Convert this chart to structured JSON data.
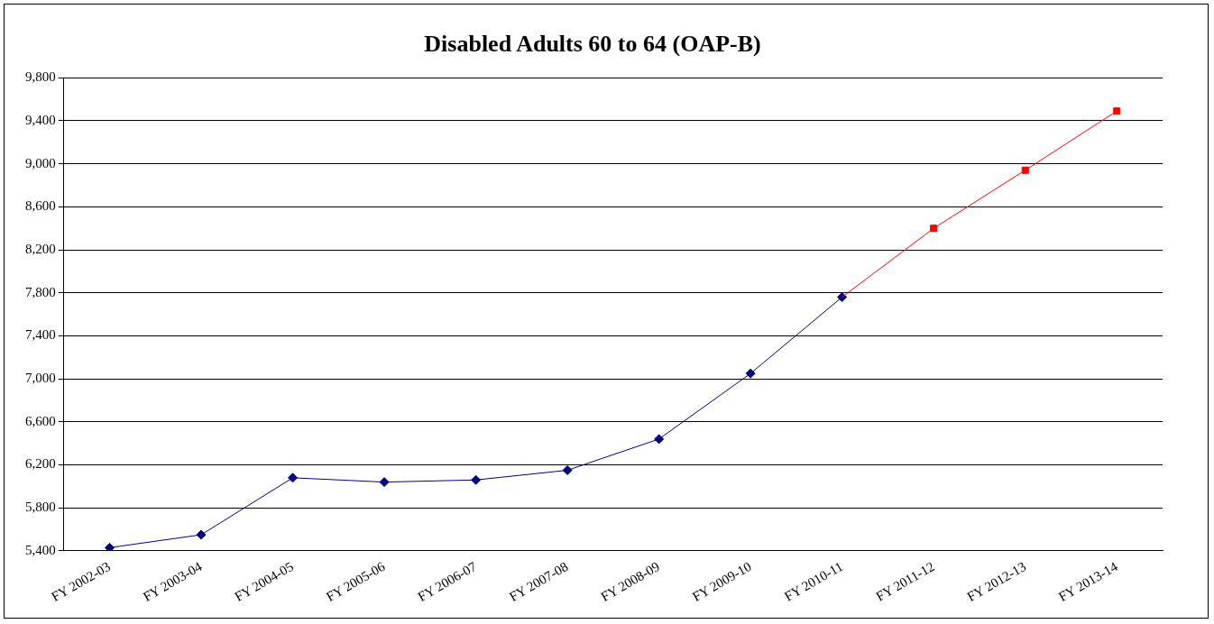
{
  "chart_data": {
    "type": "line",
    "title": "Disabled Adults 60 to 64 (OAP-B)",
    "categories": [
      "FY 2002-03",
      "FY 2003-04",
      "FY 2004-05",
      "FY 2005-06",
      "FY 2006-07",
      "FY 2007-08",
      "FY 2008-09",
      "FY 2009-10",
      "FY 2010-11",
      "FY 2011-12",
      "FY 2012-13",
      "FY 2013-14"
    ],
    "series": [
      {
        "color": "#000080",
        "marker": "diamond",
        "values": [
          5430,
          5550,
          6080,
          6040,
          6060,
          6150,
          6440,
          7050,
          7760,
          null,
          null,
          null
        ]
      },
      {
        "color": "#ff0000",
        "marker": "square",
        "values": [
          null,
          null,
          null,
          null,
          null,
          null,
          null,
          null,
          7760,
          8400,
          8940,
          9490
        ]
      }
    ],
    "ylim": [
      5400,
      9800
    ],
    "yticks": [
      {
        "value": 5400,
        "label": "5,400"
      },
      {
        "value": 5800,
        "label": "5,800"
      },
      {
        "value": 6200,
        "label": "6,200"
      },
      {
        "value": 6600,
        "label": "6,600"
      },
      {
        "value": 7000,
        "label": "7,000"
      },
      {
        "value": 7400,
        "label": "7,400"
      },
      {
        "value": 7800,
        "label": "7,800"
      },
      {
        "value": 8200,
        "label": "8,200"
      },
      {
        "value": 8600,
        "label": "8,600"
      },
      {
        "value": 9000,
        "label": "9,000"
      },
      {
        "value": 9400,
        "label": "9,400"
      },
      {
        "value": 9800,
        "label": "9,800"
      }
    ],
    "grid": "y",
    "legend": false
  }
}
